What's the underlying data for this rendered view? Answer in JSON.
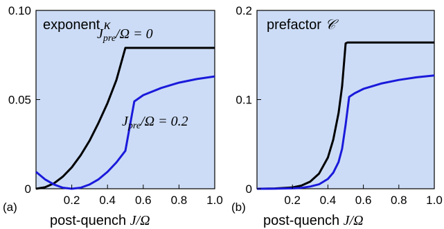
{
  "chart_data": [
    {
      "type": "line",
      "panel": "(a)",
      "title": "exponent κ",
      "xlabel": "post-quench J/Ω",
      "ylabel": "",
      "xlim": [
        0.0,
        1.0
      ],
      "ylim": [
        0.0,
        0.1
      ],
      "xticks": [
        "0.2",
        "0.4",
        "0.6",
        "0.8",
        "1.0"
      ],
      "yticks": [
        "0",
        "0.05",
        "0.10"
      ],
      "series": [
        {
          "name": "J_pre/Ω = 0",
          "color": "#000000",
          "x": [
            0.0,
            0.05,
            0.1,
            0.15,
            0.2,
            0.25,
            0.3,
            0.35,
            0.4,
            0.45,
            0.5,
            0.6,
            0.7,
            0.8,
            0.9,
            1.0
          ],
          "y": [
            0.0,
            0.0008,
            0.003,
            0.0068,
            0.012,
            0.0188,
            0.027,
            0.037,
            0.048,
            0.061,
            0.079,
            0.079,
            0.079,
            0.079,
            0.079,
            0.079
          ]
        },
        {
          "name": "J_pre/Ω = 0.2",
          "color": "#1a1adb",
          "x": [
            0.0,
            0.05,
            0.1,
            0.15,
            0.2,
            0.25,
            0.3,
            0.35,
            0.4,
            0.45,
            0.5,
            0.55,
            0.6,
            0.7,
            0.8,
            0.9,
            1.0
          ],
          "y": [
            0.0095,
            0.0053,
            0.0024,
            0.0006,
            0.0,
            0.0006,
            0.0024,
            0.0053,
            0.0095,
            0.0148,
            0.0213,
            0.049,
            0.0525,
            0.0565,
            0.0595,
            0.0615,
            0.063
          ]
        }
      ],
      "annotations": [
        "J_pre/Ω = 0",
        "J_pre/Ω = 0.2"
      ]
    },
    {
      "type": "line",
      "panel": "(b)",
      "title": "prefactor 𝒞",
      "xlabel": "post-quench J/Ω",
      "ylabel": "",
      "xlim": [
        0.0,
        1.0
      ],
      "ylim": [
        0.0,
        0.2
      ],
      "xticks": [
        "0.2",
        "0.4",
        "0.6",
        "0.8",
        "1.0"
      ],
      "yticks": [
        "0",
        "0.1",
        "0.2"
      ],
      "series": [
        {
          "color": "#000000",
          "x": [
            0.0,
            0.1,
            0.2,
            0.25,
            0.3,
            0.35,
            0.4,
            0.43,
            0.46,
            0.48,
            0.5,
            0.51,
            0.6,
            0.7,
            0.8,
            0.9,
            1.0
          ],
          "y": [
            0.0,
            0.0003,
            0.0015,
            0.0035,
            0.008,
            0.017,
            0.035,
            0.055,
            0.085,
            0.115,
            0.163,
            0.164,
            0.164,
            0.164,
            0.164,
            0.164,
            0.164
          ]
        },
        {
          "color": "#1a1adb",
          "x": [
            0.0,
            0.1,
            0.2,
            0.25,
            0.3,
            0.35,
            0.4,
            0.43,
            0.46,
            0.48,
            0.5,
            0.52,
            0.55,
            0.6,
            0.7,
            0.8,
            0.9,
            1.0
          ],
          "y": [
            0.0,
            0.0001,
            0.0005,
            0.001,
            0.0025,
            0.005,
            0.011,
            0.018,
            0.03,
            0.045,
            0.072,
            0.103,
            0.107,
            0.112,
            0.118,
            0.122,
            0.125,
            0.127
          ]
        }
      ]
    }
  ],
  "labels": {
    "panel_a": "(a)",
    "panel_b": "(b)",
    "xlabel_text": "post-quench ",
    "xlabel_math": "J/Ω",
    "title_a_text": "exponent ",
    "title_a_math": "κ",
    "title_b_text": "prefactor ",
    "title_b_math": "𝒞",
    "ann0_J": "J",
    "ann0_sub": "pre",
    "ann0_rest": "/Ω = 0",
    "ann1_J": "J",
    "ann1_sub": "pre",
    "ann1_rest": "/Ω = 0.2"
  },
  "colors": {
    "panel_bg": "#ccdcf6",
    "black_series": "#000000",
    "blue_series": "#1a1adb",
    "blue_annotation": "#1a1adb"
  }
}
